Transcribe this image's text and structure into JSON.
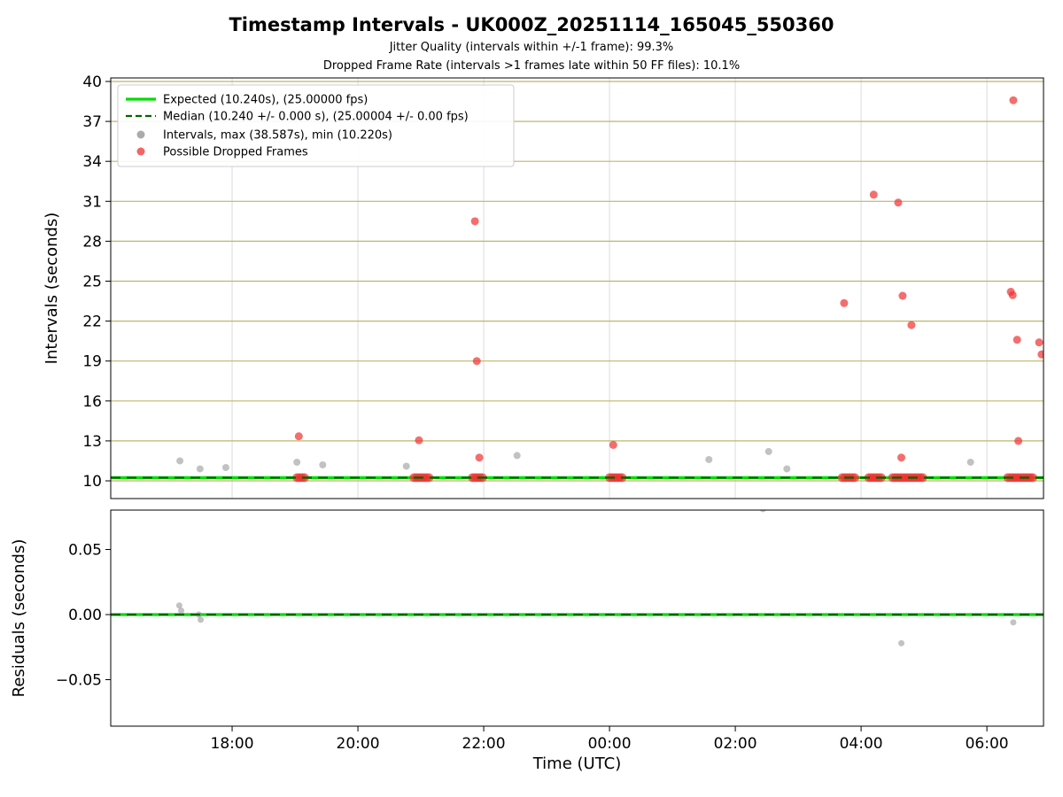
{
  "colors": {
    "expected": "#00dd00",
    "median": "#006400",
    "interval": "#8f8f8f",
    "dropped": "#f03030",
    "grid_h": "#bdb76b",
    "grid_v": "#dcdcdc",
    "spine": "#000000",
    "legend_border": "#cccccc"
  },
  "chart_data": [
    {
      "type": "scatter",
      "title": "Timestamp Intervals - UK000Z_20251114_165045_550360",
      "subtitle1": "Jitter Quality (intervals within +/-1 frame): 99.3%",
      "subtitle2": "Dropped Frame Rate (intervals >1 frames late within 50 FF files): 10.1%",
      "ylabel": "Intervals (seconds)",
      "ylim": [
        10,
        40
      ],
      "xlim_hours": [
        16.07,
        30.9
      ],
      "grid": "horizontal khaki lines at y-ticks, vertical light gray at x-ticks",
      "xticks": {
        "values": [
          18,
          20,
          22,
          24,
          26,
          28,
          30
        ],
        "labels": [
          "18:00",
          "20:00",
          "22:00",
          "00:00",
          "02:00",
          "04:00",
          "06:00"
        ]
      },
      "yticks": {
        "values": [
          10,
          13,
          16,
          19,
          22,
          25,
          28,
          31,
          34,
          37,
          40
        ],
        "labels": [
          "10",
          "13",
          "16",
          "19",
          "22",
          "25",
          "28",
          "31",
          "34",
          "37",
          "40"
        ]
      },
      "series": {
        "expected": {
          "label": "Expected (10.240s), (25.00000 fps)",
          "y": 10.24
        },
        "median": {
          "label": "Median (10.240 +/- 0.000 s), (25.00004 +/- 0.00 fps)",
          "y": 10.24,
          "style": "dashed"
        },
        "intervals": {
          "label": "Intervals, max (38.587s), min (10.220s)",
          "max": 38.587,
          "min": 10.22,
          "points": [
            [
              17.17,
              11.5
            ],
            [
              17.49,
              10.9
            ],
            [
              17.9,
              11.0
            ],
            [
              19.03,
              11.4
            ],
            [
              19.44,
              11.2
            ],
            [
              20.77,
              11.1
            ],
            [
              22.53,
              11.9
            ],
            [
              25.58,
              11.6
            ],
            [
              26.53,
              12.2
            ],
            [
              26.82,
              10.9
            ],
            [
              29.74,
              11.4
            ]
          ]
        },
        "dropped": {
          "label": "Possible Dropped Frames",
          "points": [
            [
              19.06,
              13.35
            ],
            [
              20.97,
              13.05
            ],
            [
              21.86,
              29.5
            ],
            [
              21.89,
              19.0
            ],
            [
              21.93,
              11.75
            ],
            [
              24.06,
              12.7
            ],
            [
              27.73,
              23.35
            ],
            [
              28.2,
              31.5
            ],
            [
              28.59,
              30.9
            ],
            [
              28.66,
              23.9
            ],
            [
              28.64,
              11.75
            ],
            [
              28.8,
              21.7
            ],
            [
              30.42,
              38.587
            ],
            [
              30.38,
              24.2
            ],
            [
              30.41,
              23.95
            ],
            [
              30.48,
              20.6
            ],
            [
              30.5,
              13.0
            ],
            [
              30.83,
              20.4
            ],
            [
              30.87,
              19.5
            ]
          ],
          "baseline_value": 10.24,
          "baseline_times": [
            19.03,
            19.07,
            19.11,
            19.15,
            20.89,
            20.93,
            20.97,
            21.01,
            21.05,
            21.09,
            21.13,
            21.82,
            21.86,
            21.9,
            21.94,
            21.98,
            24.0,
            24.04,
            24.08,
            24.12,
            24.16,
            24.2,
            27.7,
            27.74,
            27.78,
            27.82,
            27.86,
            27.9,
            28.12,
            28.16,
            28.2,
            28.24,
            28.28,
            28.32,
            28.5,
            28.54,
            28.58,
            28.62,
            28.66,
            28.7,
            28.74,
            28.78,
            28.82,
            28.86,
            28.9,
            28.94,
            28.98,
            30.33,
            30.37,
            30.41,
            30.45,
            30.49,
            30.53,
            30.57,
            30.61,
            30.65,
            30.69,
            30.73
          ]
        }
      },
      "legend": [
        {
          "type": "line",
          "style": "solid",
          "color_key": "expected",
          "label": "Expected (10.240s), (25.00000 fps)"
        },
        {
          "type": "line",
          "style": "dashed",
          "color_key": "median",
          "label": "Median (10.240 +/- 0.000 s), (25.00004 +/- 0.00 fps)"
        },
        {
          "type": "dot",
          "color_key": "interval",
          "label": "Intervals, max (38.587s), min (10.220s)"
        },
        {
          "type": "dot",
          "color_key": "dropped",
          "label": "Possible Dropped Frames"
        }
      ]
    },
    {
      "type": "scatter",
      "ylabel": "Residuals (seconds)",
      "xlabel": "Time (UTC)",
      "ylim": [
        -0.08,
        0.08
      ],
      "yticks": {
        "values": [
          -0.05,
          0,
          0.05
        ],
        "labels": [
          "−0.05",
          "0.00",
          "0.05"
        ]
      },
      "series": {
        "expected": {
          "y": 0
        },
        "median": {
          "y": 0,
          "style": "dashed"
        },
        "residuals": {
          "points": [
            [
              17.16,
              0.007
            ],
            [
              17.19,
              0.003
            ],
            [
              17.47,
              0.0
            ],
            [
              17.5,
              -0.004
            ],
            [
              26.44,
              0.081
            ],
            [
              28.64,
              -0.022
            ],
            [
              30.42,
              -0.006
            ]
          ]
        }
      }
    }
  ]
}
